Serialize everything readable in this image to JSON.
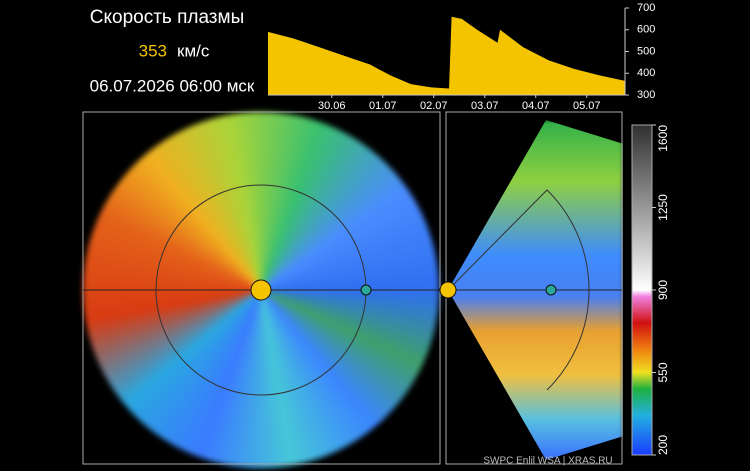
{
  "header": {
    "title": "Скорость плазмы",
    "speed": 353,
    "unit": "км/с",
    "datetime": "06.07.2026 06:00 мск"
  },
  "chart_data": {
    "type": "area",
    "color": "#f5c400",
    "x": [
      0,
      0.5,
      1,
      1.5,
      2,
      2.4,
      2.8,
      3.2,
      3.55,
      3.6,
      3.8,
      4.1,
      4.5,
      4.55,
      5,
      5.5,
      6,
      6.5,
      7
    ],
    "values": [
      590,
      560,
      520,
      480,
      440,
      390,
      350,
      335,
      330,
      660,
      650,
      600,
      540,
      600,
      520,
      460,
      420,
      390,
      365
    ],
    "xlim": [
      0,
      7
    ],
    "xticks": [
      {
        "value": 1.25,
        "label": "30.06"
      },
      {
        "value": 2.25,
        "label": "01.07"
      },
      {
        "value": 3.25,
        "label": "02.07"
      },
      {
        "value": 4.25,
        "label": "03.07"
      },
      {
        "value": 5.25,
        "label": "04.07"
      },
      {
        "value": 6.25,
        "label": "05.07"
      }
    ],
    "ylim": [
      300,
      700
    ],
    "yticks": [
      300,
      400,
      500,
      600,
      700
    ]
  },
  "colorbar": {
    "lim": [
      200,
      1600
    ],
    "ticks": [
      200,
      550,
      900,
      1250,
      1600
    ]
  },
  "credit": "SWPC Enlil WSA | XRAS.RU"
}
